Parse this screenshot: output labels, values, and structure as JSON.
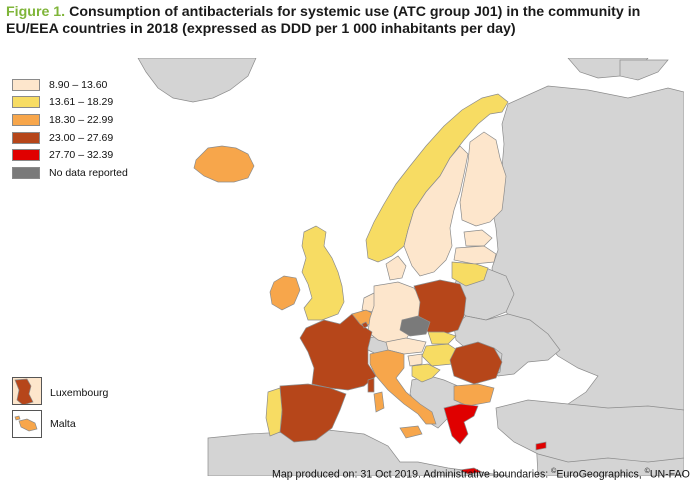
{
  "title": {
    "figure_label": "Figure 1.",
    "text": "Consumption of antibacterials for systemic use (ATC group J01) in the community in EU/EEA countries in 2018 (expressed as DDD per 1 000 inhabitants per day)"
  },
  "legend": {
    "items": [
      {
        "label": "8.90 – 13.60",
        "color": "#fde6cc"
      },
      {
        "label": "13.61 – 18.29",
        "color": "#f7dc63"
      },
      {
        "label": "18.30 – 22.99",
        "color": "#f7a64b"
      },
      {
        "label": "23.00 – 27.69",
        "color": "#b6461a"
      },
      {
        "label": "27.70 – 32.39",
        "color": "#e00000"
      },
      {
        "label": "No data reported",
        "color": "#7a7a7a"
      }
    ]
  },
  "insets": {
    "luxembourg": "Luxembourg",
    "malta": "Malta"
  },
  "colors": {
    "non_eu_land": "#d4d4d4",
    "sea": "#ffffff",
    "border": "#8c8c8c"
  },
  "countries": {
    "iceland": "18.30 – 22.99",
    "ireland": "18.30 – 22.99",
    "united_kingdom": "13.61 – 18.29",
    "norway": "13.61 – 18.29",
    "sweden": "8.90 – 13.60",
    "finland": "8.90 – 13.60",
    "estonia": "8.90 – 13.60",
    "latvia": "8.90 – 13.60",
    "lithuania": "13.61 – 18.29",
    "denmark": "8.90 – 13.60",
    "netherlands": "8.90 – 13.60",
    "belgium": "18.30 – 22.99",
    "germany": "8.90 – 13.60",
    "poland": "23.00 – 27.69",
    "czechia": "No data reported",
    "slovakia": "13.61 – 18.29",
    "austria": "8.90 – 13.60",
    "hungary": "13.61 – 18.29",
    "slovenia": "8.90 – 13.60",
    "croatia": "13.61 – 18.29",
    "romania": "23.00 – 27.69",
    "bulgaria": "18.30 – 22.99",
    "greece": "27.70 – 32.39",
    "italy": "18.30 – 22.99",
    "france": "23.00 – 27.69",
    "spain": "23.00 – 27.69",
    "portugal": "13.61 – 18.29",
    "cyprus": "27.70 – 32.39",
    "luxembourg": "23.00 – 27.69",
    "malta": "18.30 – 22.99"
  },
  "footer": {
    "text": "Map produced on: 31 Oct 2019. Administrative boundaries: ",
    "copy1": "©",
    "src1": "EuroGeographics, ",
    "copy2": "©",
    "src2": "UN-FAO"
  }
}
